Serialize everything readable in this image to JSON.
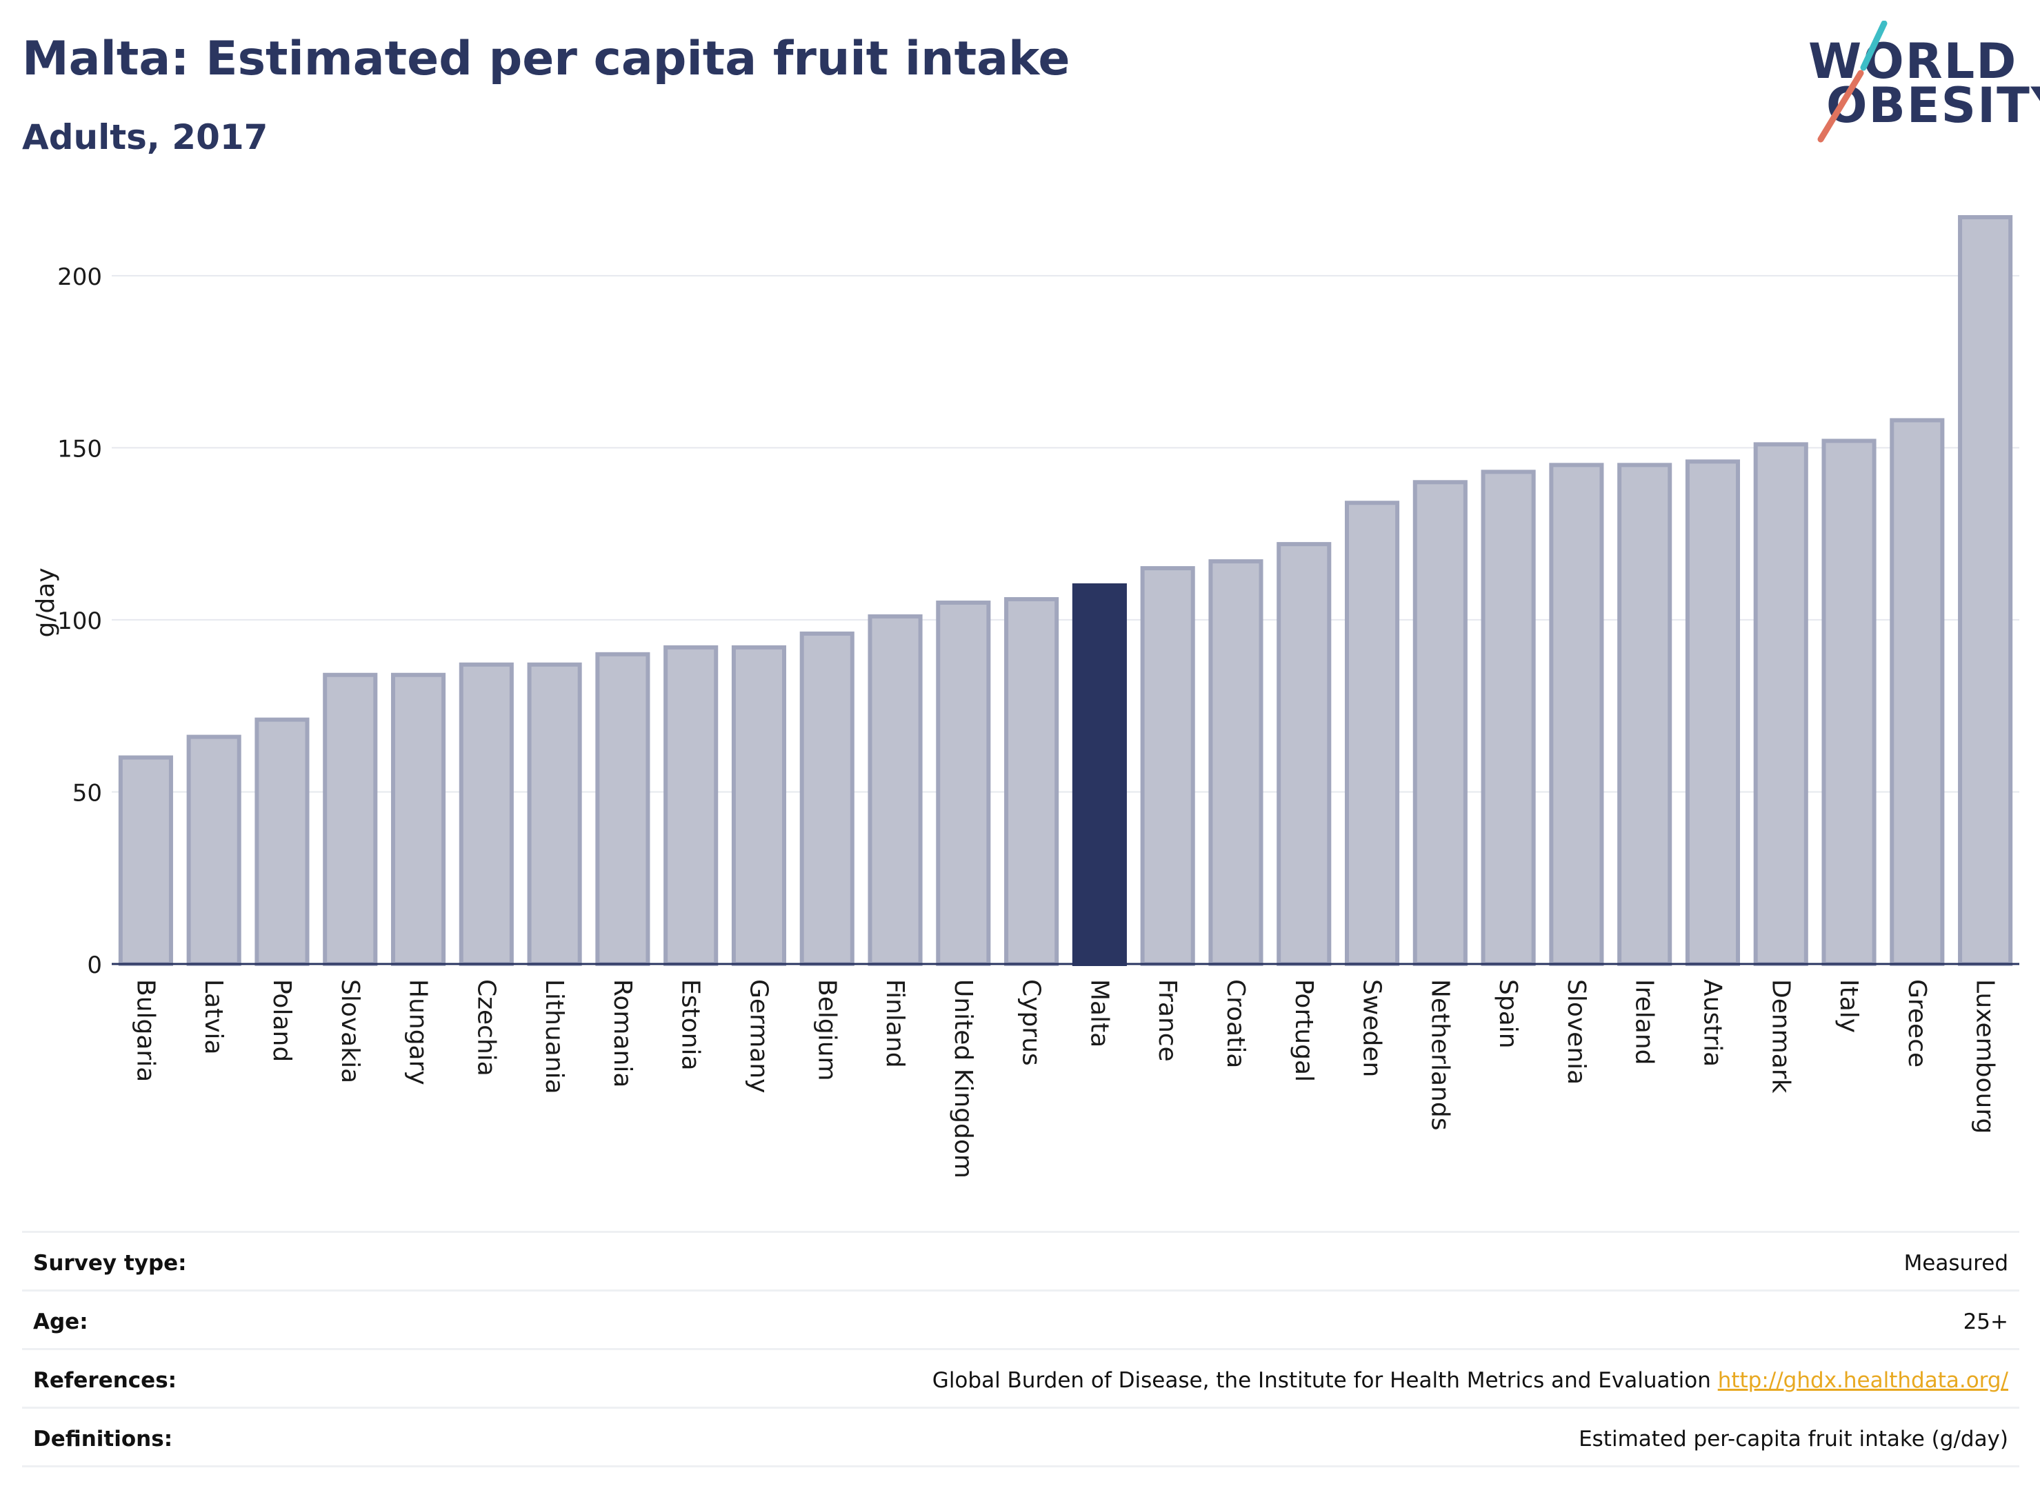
{
  "header": {
    "title": "Malta: Estimated per capita fruit intake",
    "subtitle": "Adults, 2017"
  },
  "logo": {
    "line1": "WORLD",
    "line2": "OBESITY",
    "accent_colors": [
      "#3dbdc6",
      "#e0735e"
    ]
  },
  "chart_data": {
    "type": "bar",
    "ylabel": "g/day",
    "ylim": [
      0,
      220
    ],
    "yticks": [
      0,
      50,
      100,
      150,
      200
    ],
    "grid": true,
    "highlight": "Malta",
    "colors": {
      "bar": "#bec1cf",
      "bar_border": "#a1a6bd",
      "highlight": "#2a3561",
      "grid": "#e6e8ee",
      "axis": "#2a3561"
    },
    "categories": [
      "Bulgaria",
      "Latvia",
      "Poland",
      "Slovakia",
      "Hungary",
      "Czechia",
      "Lithuania",
      "Romania",
      "Estonia",
      "Germany",
      "Belgium",
      "Finland",
      "United Kingdom",
      "Cyprus",
      "Malta",
      "France",
      "Croatia",
      "Portugal",
      "Sweden",
      "Netherlands",
      "Spain",
      "Slovenia",
      "Ireland",
      "Austria",
      "Denmark",
      "Italy",
      "Greece",
      "Luxembourg"
    ],
    "values": [
      60,
      66,
      71,
      84,
      84,
      87,
      87,
      90,
      92,
      92,
      96,
      101,
      105,
      106,
      110,
      115,
      117,
      122,
      134,
      140,
      143,
      145,
      145,
      146,
      151,
      152,
      158,
      217
    ]
  },
  "info": [
    {
      "label": "Survey type:",
      "value": "Measured"
    },
    {
      "label": "Age:",
      "value": "25+"
    },
    {
      "label": "References:",
      "value": "Global Burden of Disease, the Institute for Health Metrics and Evaluation",
      "link": "http://ghdx.healthdata.org/"
    },
    {
      "label": "Definitions:",
      "value": "Estimated per-capita fruit intake (g/day)"
    }
  ]
}
